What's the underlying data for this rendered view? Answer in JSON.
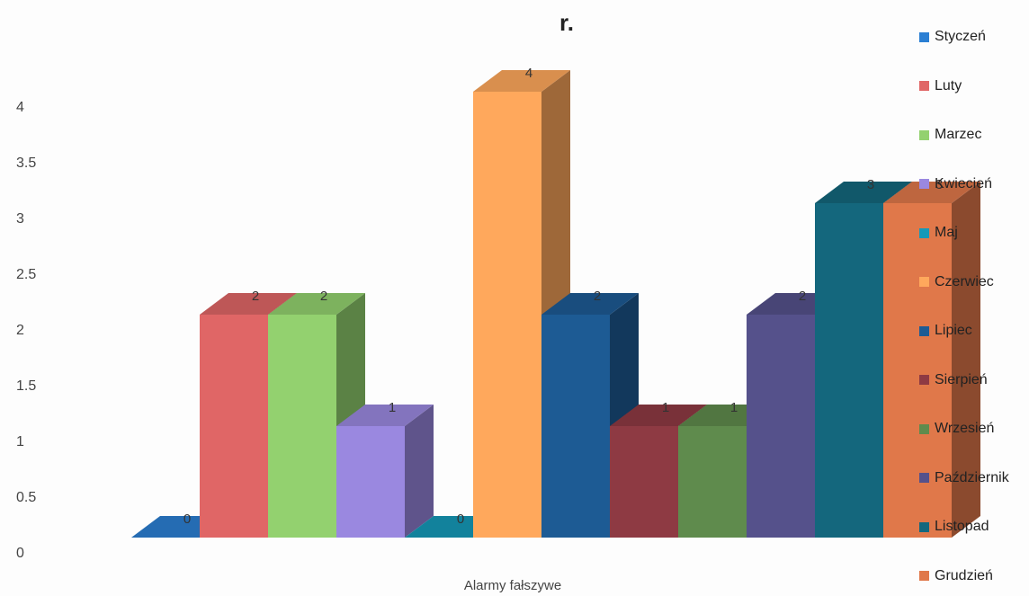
{
  "chart_data": {
    "type": "bar",
    "title": "r.",
    "categories": [
      "Alarmy fałszywe"
    ],
    "yticks": [
      "0",
      "0.5",
      "1",
      "1.5",
      "2",
      "2.5",
      "3",
      "3.5",
      "4"
    ],
    "ylim": [
      0,
      4.5
    ],
    "grid": false,
    "legend_position": "right",
    "style": "3d-clustered-column",
    "series": [
      {
        "name": "Styczeń",
        "values": [
          0
        ],
        "label": "0",
        "color": "#2b7fd3"
      },
      {
        "name": "Luty",
        "values": [
          2
        ],
        "label": "2",
        "color": "#e06666"
      },
      {
        "name": "Marzec",
        "values": [
          2
        ],
        "label": "2",
        "color": "#93d16f"
      },
      {
        "name": "Kwiecień",
        "values": [
          1
        ],
        "label": "1",
        "color": "#9a88e0"
      },
      {
        "name": "Maj",
        "values": [
          0
        ],
        "label": "0",
        "color": "#1599b8"
      },
      {
        "name": "Czerwiec",
        "values": [
          4
        ],
        "label": "4",
        "color": "#ffa85c"
      },
      {
        "name": "Lipiec",
        "values": [
          2
        ],
        "label": "2",
        "color": "#1d5b94"
      },
      {
        "name": "Sierpień",
        "values": [
          1
        ],
        "label": "1",
        "color": "#8e3a43"
      },
      {
        "name": "Wrzesień",
        "values": [
          1
        ],
        "label": "1",
        "color": "#5f8b4d"
      },
      {
        "name": "Październik",
        "values": [
          2
        ],
        "label": "2",
        "color": "#55518b"
      },
      {
        "name": "Listopad",
        "values": [
          3
        ],
        "label": "3",
        "color": "#14677d"
      },
      {
        "name": "Grudzień",
        "values": [
          3
        ],
        "label": "3",
        "color": "#e0784a"
      }
    ]
  }
}
